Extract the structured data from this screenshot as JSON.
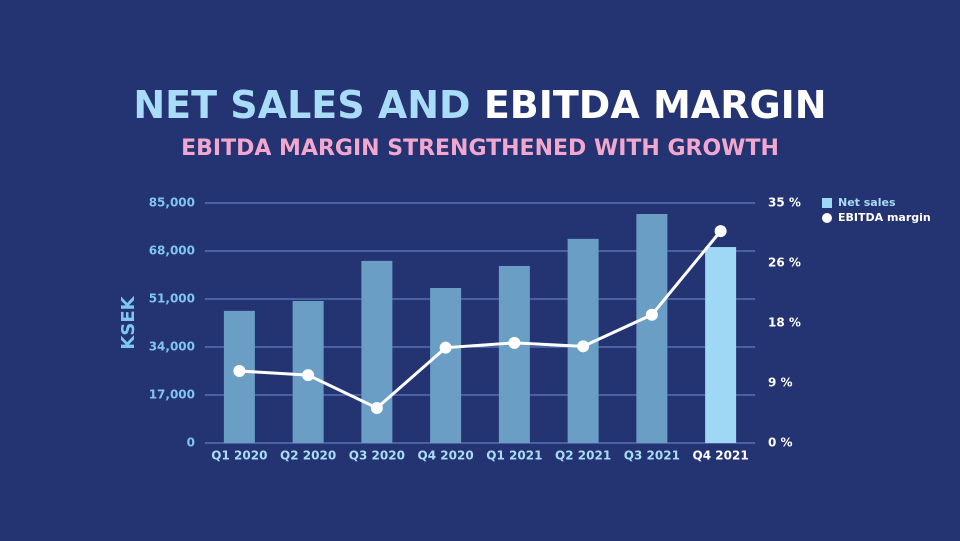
{
  "chart_data": {
    "type": "bar_line",
    "title": "NET SALES AND",
    "title_highlight": "EBITDA MARGIN",
    "subtitle": "EBITDA MARGIN STRENGTHENED WITH GROWTH",
    "ylabel": "KSEK",
    "categories": [
      "Q1 2020",
      "Q2 2020",
      "Q3 2020",
      "Q4 2020",
      "Q1 2021",
      "Q2 2021",
      "Q3 2021",
      "Q4 2021"
    ],
    "series": [
      {
        "name": "Net sales",
        "type": "bar",
        "color": "#9fd8f5",
        "bar_colors": [
          "#6a9ec4",
          "#6a9ec4",
          "#6a9ec4",
          "#6a9ec4",
          "#6a9ec4",
          "#6a9ec4",
          "#6a9ec4",
          "#9fd8f5"
        ],
        "values": [
          46800,
          50300,
          64500,
          54900,
          62700,
          72300,
          81100,
          69400
        ]
      },
      {
        "name": "EBITDA margin",
        "type": "line",
        "axis": "y2",
        "color": "#ffffff",
        "values": [
          10.5,
          9.9,
          5.1,
          13.9,
          14.6,
          14.1,
          18.7,
          30.9
        ]
      }
    ],
    "ylim": [
      0,
      85000
    ],
    "yticks": [
      0,
      {
        "value": 17000,
        "label": "17,000"
      },
      {
        "value": 34000,
        "label": "34,000"
      },
      {
        "value": 51000,
        "label": "51,000"
      },
      {
        "value": 68000,
        "label": "68,000"
      },
      {
        "value": 85000,
        "label": "85,000"
      }
    ],
    "y2lim": [
      0,
      35
    ],
    "y2ticks": [
      {
        "value": 0,
        "label": "0 %"
      },
      {
        "value": 8.75,
        "label": "9 %"
      },
      {
        "value": 17.5,
        "label": "18 %"
      },
      {
        "value": 26.25,
        "label": "26 %"
      },
      {
        "value": 35,
        "label": "35 %"
      }
    ],
    "grid": true,
    "legend": "top-right"
  }
}
